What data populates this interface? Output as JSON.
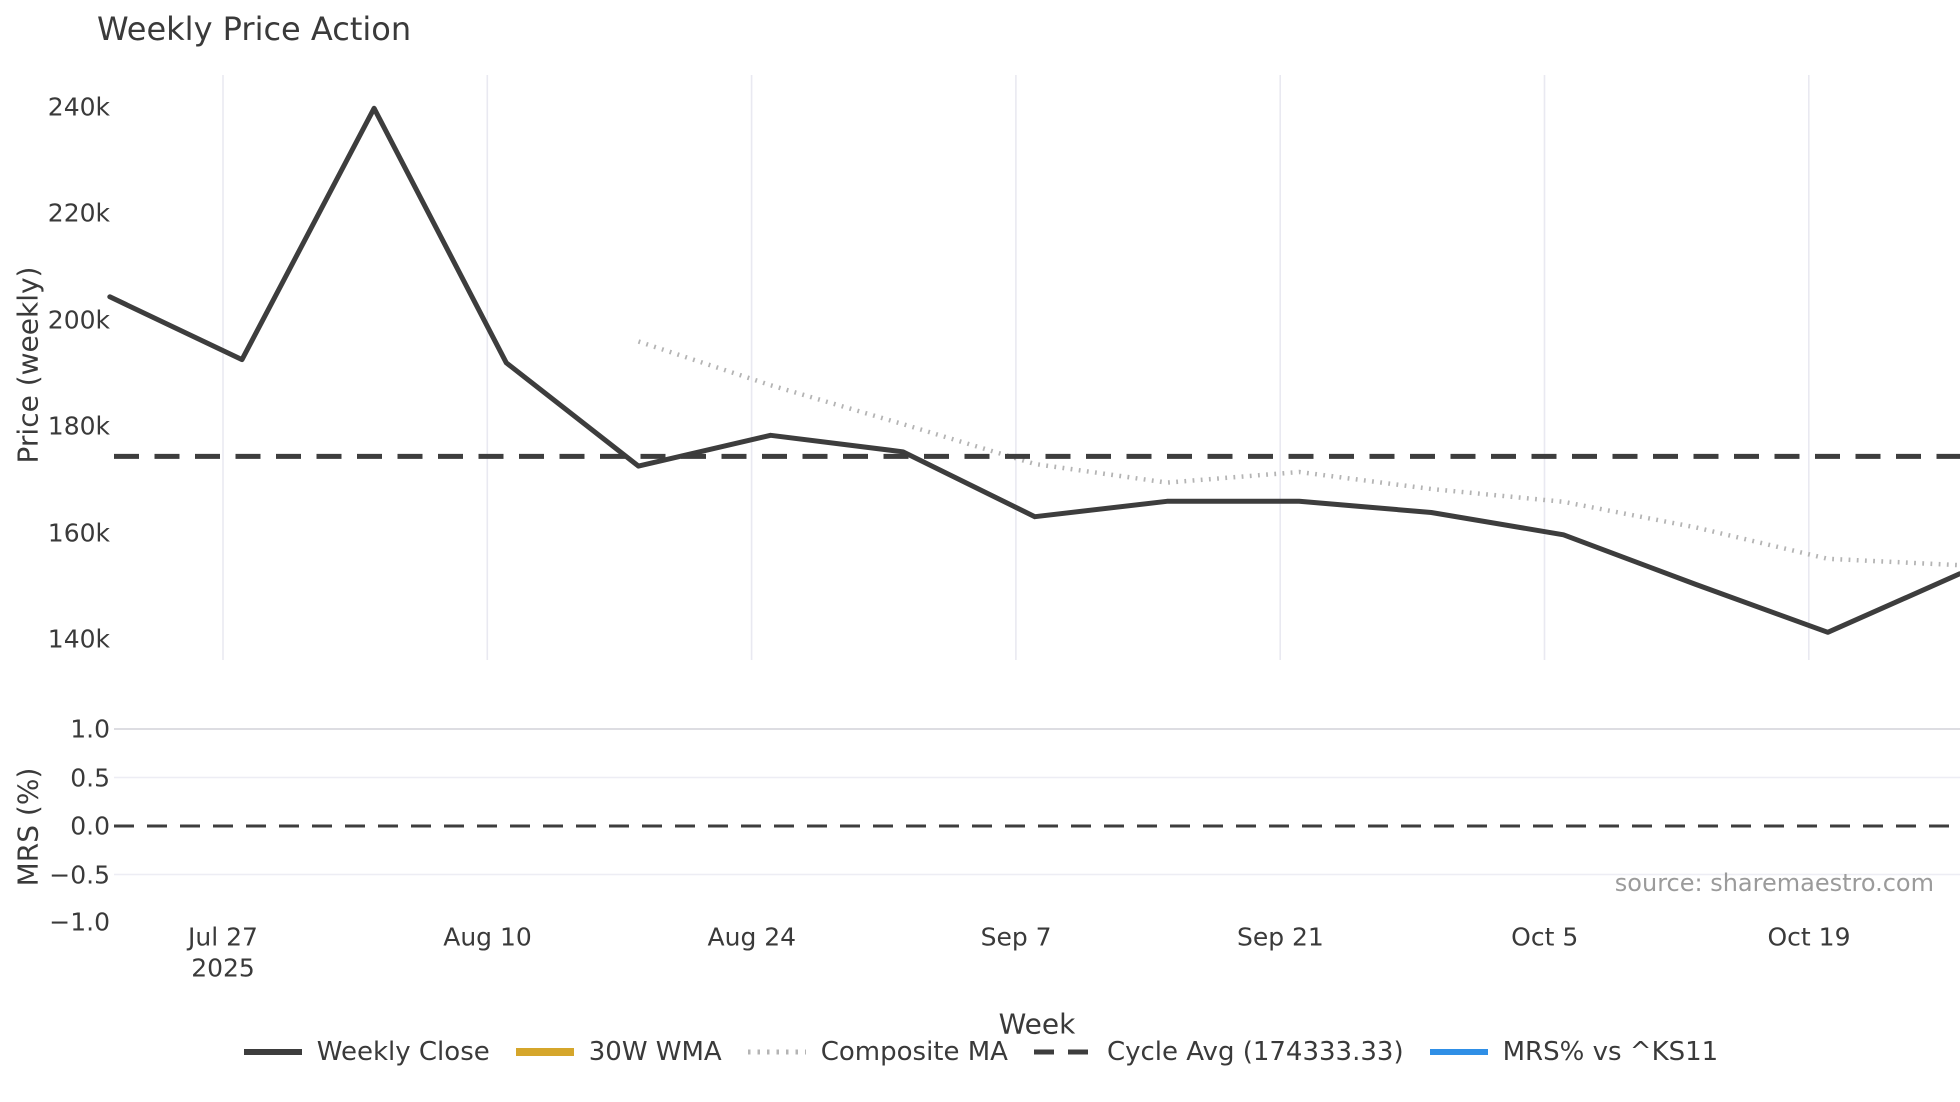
{
  "title": "Weekly Price Action",
  "source_note": "source: sharemaestro.com",
  "price_axis": {
    "label": "Price (weekly)",
    "ticks": [
      "240k",
      "220k",
      "200k",
      "180k",
      "160k",
      "140k"
    ]
  },
  "mrs_axis": {
    "label": "MRS (%)",
    "ticks": [
      "1.0",
      "0.5",
      "0.0",
      "−0.5",
      "−1.0"
    ]
  },
  "x_axis": {
    "label": "Week",
    "ticks": [
      "Jul 27",
      "Aug 10",
      "Aug 24",
      "Sep 7",
      "Sep 21",
      "Oct 5",
      "Oct 19"
    ],
    "year_label": "2025"
  },
  "legend": [
    {
      "label": "Weekly Close",
      "color": "#3d3d3d",
      "style": "solid"
    },
    {
      "label": "30W WMA",
      "color": "#d5a62b",
      "style": "solid"
    },
    {
      "label": "Composite MA",
      "color": "#b4b4b4",
      "style": "dotted"
    },
    {
      "label": "Cycle Avg (174333.33)",
      "color": "#3d3d3d",
      "style": "dashed"
    },
    {
      "label": "MRS% vs ^KS11",
      "color": "#2f8fe6",
      "style": "solid"
    }
  ],
  "chart_data": {
    "type": "line",
    "title": "Weekly Price Action",
    "xlabel": "Week",
    "panels": [
      {
        "name": "price",
        "ylabel": "Price (weekly)",
        "ylim": [
          136000,
          246000
        ],
        "yticks": [
          140000,
          160000,
          180000,
          200000,
          220000,
          240000
        ]
      },
      {
        "name": "mrs",
        "ylabel": "MRS (%)",
        "ylim": [
          -1.05,
          1.0
        ],
        "yticks": [
          -1.0,
          -0.5,
          0.0,
          0.5,
          1.0
        ]
      }
    ],
    "x_tick_labels": [
      "Jul 27 2025",
      "Aug 10",
      "Aug 24",
      "Sep 7",
      "Sep 21",
      "Oct 5",
      "Oct 19"
    ],
    "weeks": [
      "2025-07-21",
      "2025-07-28",
      "2025-08-04",
      "2025-08-11",
      "2025-08-18",
      "2025-08-25",
      "2025-09-01",
      "2025-09-08",
      "2025-09-15",
      "2025-09-22",
      "2025-09-29",
      "2025-10-06",
      "2025-10-13",
      "2025-10-20",
      "2025-10-27"
    ],
    "grid": {
      "vertical_in_price_panel": true,
      "horizontal_in_mrs_panel": true
    },
    "legend_position": "bottom-center",
    "series": [
      {
        "name": "Weekly Close",
        "panel": "price",
        "style": "solid",
        "color": "#3d3d3d",
        "width": 5,
        "values": [
          204300,
          192500,
          239700,
          191900,
          172500,
          178300,
          175200,
          163000,
          165900,
          165900,
          163800,
          159600,
          150300,
          141300,
          152300
        ]
      },
      {
        "name": "30W WMA",
        "panel": "price",
        "style": "solid",
        "color": "#d5a62b",
        "width": 5,
        "values": [],
        "note": "in legend only, no visible data"
      },
      {
        "name": "Composite MA",
        "panel": "price",
        "style": "dotted",
        "color": "#b4b4b4",
        "width": 4.5,
        "values": [
          null,
          null,
          null,
          null,
          195900,
          187700,
          180400,
          172900,
          169400,
          171400,
          168200,
          165800,
          161000,
          155100,
          153900
        ]
      },
      {
        "name": "Cycle Avg",
        "panel": "price",
        "style": "dashed",
        "color": "#3d3d3d",
        "width": 5,
        "type": "hline",
        "value": 174333.33
      },
      {
        "name": "MRS% vs ^KS11",
        "panel": "mrs",
        "style": "solid",
        "color": "#2f8fe6",
        "width": 5,
        "values": [],
        "note": "in legend only, no visible data"
      },
      {
        "name": "MRS zero reference",
        "panel": "mrs",
        "style": "dashed",
        "color": "#3d3d3d",
        "width": 3,
        "type": "hline",
        "value": 0
      }
    ]
  }
}
